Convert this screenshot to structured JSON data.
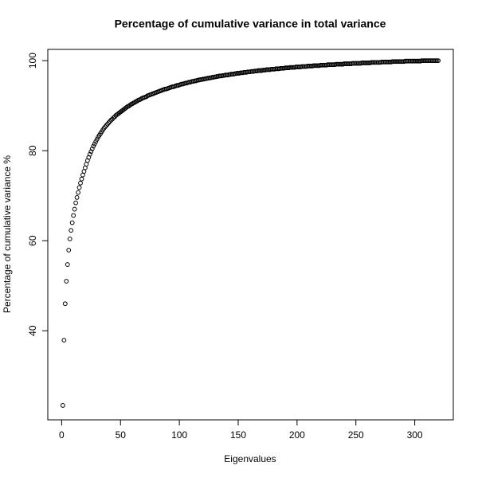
{
  "chart_data": {
    "type": "scatter",
    "title": "Percentage of cumulative variance in total variance",
    "x_label": "Eigenvalues",
    "y_label": "Percentage of cumulative variance %",
    "color": "#000000",
    "xlim": [
      -11.76,
      332.76
    ],
    "ylim": [
      20.2,
      102.5
    ],
    "xticks": [
      0,
      50,
      100,
      150,
      200,
      250,
      300
    ],
    "yticks": [
      40,
      60,
      80,
      100
    ],
    "x": [
      1,
      2,
      3,
      4,
      5,
      6,
      7,
      8,
      9,
      10,
      11,
      12,
      13,
      14,
      15,
      16,
      17,
      18,
      19,
      20,
      21,
      22,
      23,
      24,
      25,
      26,
      27,
      28,
      29,
      30,
      31,
      32,
      33,
      34,
      35,
      36,
      37,
      38,
      39,
      40,
      41,
      42,
      43,
      44,
      45,
      46,
      47,
      48,
      49,
      50,
      51,
      52,
      53,
      54,
      55,
      56,
      57,
      58,
      59,
      60,
      61,
      62,
      63,
      64,
      65,
      66,
      67,
      68,
      69,
      70,
      71,
      72,
      73,
      74,
      75,
      76,
      77,
      78,
      79,
      80,
      81,
      82,
      83,
      84,
      85,
      86,
      87,
      88,
      89,
      90,
      91,
      92,
      93,
      94,
      95,
      96,
      97,
      98,
      99,
      100,
      101,
      102,
      103,
      104,
      105,
      106,
      107,
      108,
      109,
      110,
      111,
      112,
      113,
      114,
      115,
      116,
      117,
      118,
      119,
      120,
      121,
      122,
      123,
      124,
      125,
      126,
      127,
      128,
      129,
      130,
      131,
      132,
      133,
      134,
      135,
      136,
      137,
      138,
      139,
      140,
      141,
      142,
      143,
      144,
      145,
      146,
      147,
      148,
      149,
      150,
      151,
      152,
      153,
      154,
      155,
      156,
      157,
      158,
      159,
      160,
      161,
      162,
      163,
      164,
      165,
      166,
      167,
      168,
      169,
      170,
      171,
      172,
      173,
      174,
      175,
      176,
      177,
      178,
      179,
      180,
      181,
      182,
      183,
      184,
      185,
      186,
      187,
      188,
      189,
      190,
      191,
      192,
      193,
      194,
      195,
      196,
      197,
      198,
      199,
      200,
      201,
      202,
      203,
      204,
      205,
      206,
      207,
      208,
      209,
      210,
      211,
      212,
      213,
      214,
      215,
      216,
      217,
      218,
      219,
      220,
      221,
      222,
      223,
      224,
      225,
      226,
      227,
      228,
      229,
      230,
      231,
      232,
      233,
      234,
      235,
      236,
      237,
      238,
      239,
      240,
      241,
      242,
      243,
      244,
      245,
      246,
      247,
      248,
      249,
      250,
      251,
      252,
      253,
      254,
      255,
      256,
      257,
      258,
      259,
      260,
      261,
      262,
      263,
      264,
      265,
      266,
      267,
      268,
      269,
      270,
      271,
      272,
      273,
      274,
      275,
      276,
      277,
      278,
      279,
      280,
      281,
      282,
      283,
      284,
      285,
      286,
      287,
      288,
      289,
      290,
      291,
      292,
      293,
      294,
      295,
      296,
      297,
      298,
      299,
      300,
      301,
      302,
      303,
      304,
      305,
      306,
      307,
      308,
      309,
      310,
      311,
      312,
      313,
      314,
      315,
      316,
      317,
      318,
      319,
      320
    ],
    "values": [
      23.4,
      37.9,
      46.0,
      51.0,
      54.7,
      57.9,
      60.4,
      62.3,
      64.0,
      65.6,
      67.0,
      68.4,
      69.6,
      70.7,
      71.8,
      72.8,
      73.7,
      74.6,
      75.4,
      76.2,
      77.0,
      77.8,
      78.5,
      79.2,
      79.8,
      80.4,
      81.0,
      81.5,
      82.0,
      82.5,
      83.0,
      83.4,
      83.8,
      84.2,
      84.6,
      85.0,
      85.3,
      85.6,
      85.9,
      86.2,
      86.5,
      86.8,
      87.0,
      87.3,
      87.5,
      87.8,
      88.0,
      88.2,
      88.4,
      88.6,
      88.8,
      89.0,
      89.2,
      89.4,
      89.6,
      89.8,
      89.9,
      90.1,
      90.3,
      90.4,
      90.6,
      90.7,
      90.9,
      91.0,
      91.2,
      91.3,
      91.4,
      91.6,
      91.7,
      91.8,
      91.9,
      92.0,
      92.2,
      92.3,
      92.4,
      92.5,
      92.6,
      92.7,
      92.8,
      92.9,
      93.0,
      93.1,
      93.2,
      93.3,
      93.4,
      93.5,
      93.6,
      93.7,
      93.7,
      93.8,
      93.9,
      94.0,
      94.1,
      94.2,
      94.2,
      94.3,
      94.4,
      94.5,
      94.5,
      94.6,
      94.7,
      94.8,
      94.8,
      94.9,
      95.0,
      95.0,
      95.1,
      95.2,
      95.2,
      95.3,
      95.4,
      95.4,
      95.5,
      95.5,
      95.6,
      95.7,
      95.7,
      95.8,
      95.8,
      95.9,
      95.9,
      96.0,
      96.0,
      96.1,
      96.1,
      96.2,
      96.2,
      96.3,
      96.3,
      96.4,
      96.4,
      96.5,
      96.5,
      96.6,
      96.6,
      96.6,
      96.7,
      96.7,
      96.8,
      96.8,
      96.8,
      96.9,
      96.9,
      97.0,
      97.0,
      97.0,
      97.1,
      97.1,
      97.2,
      97.2,
      97.2,
      97.3,
      97.3,
      97.3,
      97.4,
      97.4,
      97.4,
      97.5,
      97.5,
      97.5,
      97.6,
      97.6,
      97.6,
      97.7,
      97.7,
      97.7,
      97.8,
      97.8,
      97.8,
      97.8,
      97.9,
      97.9,
      97.9,
      98.0,
      98.0,
      98.0,
      98.0,
      98.1,
      98.1,
      98.1,
      98.1,
      98.2,
      98.2,
      98.2,
      98.2,
      98.3,
      98.3,
      98.3,
      98.3,
      98.4,
      98.4,
      98.4,
      98.4,
      98.5,
      98.5,
      98.5,
      98.5,
      98.5,
      98.6,
      98.6,
      98.6,
      98.6,
      98.6,
      98.7,
      98.7,
      98.7,
      98.7,
      98.7,
      98.8,
      98.8,
      98.8,
      98.8,
      98.8,
      98.9,
      98.9,
      98.9,
      98.9,
      98.9,
      98.9,
      99.0,
      99.0,
      99.0,
      99.0,
      99.0,
      99.0,
      99.1,
      99.1,
      99.1,
      99.1,
      99.1,
      99.1,
      99.1,
      99.2,
      99.2,
      99.2,
      99.2,
      99.2,
      99.2,
      99.2,
      99.3,
      99.3,
      99.3,
      99.3,
      99.3,
      99.3,
      99.3,
      99.4,
      99.4,
      99.4,
      99.4,
      99.4,
      99.4,
      99.4,
      99.4,
      99.5,
      99.5,
      99.5,
      99.5,
      99.5,
      99.5,
      99.5,
      99.5,
      99.6,
      99.6,
      99.6,
      99.6,
      99.6,
      99.6,
      99.6,
      99.6,
      99.6,
      99.7,
      99.7,
      99.7,
      99.7,
      99.7,
      99.7,
      99.7,
      99.7,
      99.7,
      99.8,
      99.8,
      99.8,
      99.8,
      99.8,
      99.8,
      99.8,
      99.8,
      99.8,
      99.8,
      99.8,
      99.9,
      99.9,
      99.9,
      99.9,
      99.9,
      99.9,
      99.9,
      99.9,
      99.9,
      99.9,
      99.9,
      99.9,
      99.9,
      99.9,
      100.0,
      100.0,
      100.0,
      100.0,
      100.0,
      100.0,
      100.0,
      100.0,
      100.0,
      100.0,
      100.0,
      100.0,
      100.0,
      100.0,
      100.0
    ]
  }
}
